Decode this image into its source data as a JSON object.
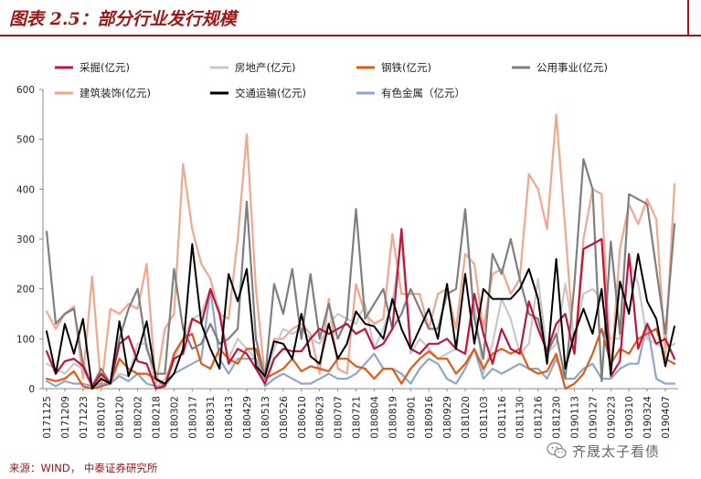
{
  "header": {
    "title": "图表 2.5：部分行业发行规模"
  },
  "footer": {
    "source": "来源：WIND， 中泰证券研究所"
  },
  "watermark": {
    "text": "齐晟太子看债",
    "icon": "wechat-icon"
  },
  "chart_data": {
    "type": "line",
    "title": "",
    "xlabel": "",
    "ylabel": "",
    "ylim": [
      0,
      600
    ],
    "yticks": [
      0,
      100,
      200,
      300,
      400,
      500,
      600
    ],
    "grid": false,
    "legend_position": "top",
    "tick_labels": [
      "20171125",
      "20171209",
      "20171223",
      "20180107",
      "20180120",
      "20180202",
      "20180218",
      "20180302",
      "20180317",
      "20180331",
      "20180413",
      "20180429",
      "20180513",
      "20180526",
      "20180610",
      "20180623",
      "20180707",
      "20180721",
      "20180804",
      "20180819",
      "20180901",
      "20180916",
      "20180929",
      "20181020",
      "20181103",
      "20181116",
      "20181130",
      "20181216",
      "20181230",
      "20190113",
      "20190127",
      "20190223",
      "20190310",
      "20190324",
      "20190407"
    ],
    "x": [
      "20171125",
      "20171202",
      "20171209",
      "20171216",
      "20171223",
      "20171230",
      "20180107",
      "20180113",
      "20180120",
      "20180127",
      "20180202",
      "20180209",
      "20180218",
      "20180224",
      "20180302",
      "20180310",
      "20180317",
      "20180324",
      "20180331",
      "20180407",
      "20180413",
      "20180421",
      "20180429",
      "20180506",
      "20180513",
      "20180519",
      "20180526",
      "20180602",
      "20180610",
      "20180616",
      "20180623",
      "20180630",
      "20180707",
      "20180714",
      "20180721",
      "20180728",
      "20180804",
      "20180811",
      "20180819",
      "20180825",
      "20180901",
      "20180908",
      "20180916",
      "20180922",
      "20180929",
      "20181013",
      "20181020",
      "20181027",
      "20181103",
      "20181110",
      "20181116",
      "20181123",
      "20181130",
      "20181209",
      "20181216",
      "20181222",
      "20181230",
      "20190105",
      "20190113",
      "20190120",
      "20190127",
      "20190210",
      "20190223",
      "20190302",
      "20190310",
      "20190317",
      "20190324",
      "20190331",
      "20190407",
      "20190414"
    ],
    "series": [
      {
        "name": "采掘(亿元)",
        "color": "#c0143c",
        "values": [
          75,
          30,
          55,
          60,
          45,
          5,
          30,
          10,
          90,
          105,
          55,
          50,
          0,
          5,
          60,
          70,
          140,
          130,
          200,
          150,
          50,
          80,
          70,
          40,
          10,
          60,
          80,
          75,
          75,
          100,
          120,
          110,
          120,
          130,
          110,
          120,
          80,
          90,
          120,
          320,
          80,
          70,
          90,
          90,
          100,
          80,
          70,
          190,
          110,
          50,
          120,
          80,
          70,
          175,
          120,
          75,
          130,
          150,
          70,
          280,
          290,
          300,
          25,
          55,
          270,
          80,
          130,
          90,
          100,
          60
        ]
      },
      {
        "name": "房地产(亿元)",
        "color": "#c8c8c8",
        "values": [
          50,
          40,
          30,
          50,
          40,
          5,
          20,
          10,
          30,
          25,
          90,
          90,
          0,
          20,
          60,
          100,
          140,
          150,
          200,
          160,
          60,
          100,
          80,
          60,
          20,
          80,
          120,
          110,
          120,
          100,
          90,
          130,
          150,
          140,
          130,
          170,
          80,
          120,
          170,
          300,
          70,
          100,
          80,
          60,
          70,
          80,
          70,
          170,
          30,
          90,
          180,
          140,
          70,
          90,
          220,
          70,
          90,
          210,
          100,
          190,
          200,
          180,
          100,
          100,
          260,
          210,
          100,
          90,
          80,
          90
        ]
      },
      {
        "name": "钢铁(亿元)",
        "color": "#e05a16",
        "values": [
          20,
          15,
          20,
          35,
          5,
          0,
          5,
          10,
          60,
          40,
          30,
          30,
          20,
          5,
          70,
          100,
          110,
          50,
          40,
          80,
          60,
          50,
          80,
          80,
          20,
          30,
          40,
          60,
          35,
          45,
          40,
          35,
          60,
          60,
          45,
          40,
          20,
          40,
          40,
          10,
          40,
          60,
          75,
          60,
          60,
          30,
          50,
          80,
          40,
          70,
          80,
          70,
          80,
          40,
          30,
          35,
          70,
          0,
          10,
          30,
          70,
          120,
          50,
          80,
          70,
          100,
          110,
          120,
          60,
          50
        ]
      },
      {
        "name": "公用事业(亿元)",
        "color": "#7f7f7f",
        "values": [
          315,
          130,
          150,
          160,
          50,
          5,
          40,
          10,
          100,
          160,
          200,
          80,
          30,
          30,
          240,
          120,
          80,
          90,
          130,
          90,
          100,
          120,
          375,
          100,
          20,
          210,
          150,
          240,
          100,
          230,
          100,
          170,
          100,
          140,
          360,
          140,
          170,
          200,
          120,
          150,
          200,
          160,
          120,
          120,
          190,
          200,
          360,
          140,
          60,
          270,
          230,
          300,
          220,
          150,
          140,
          70,
          110,
          20,
          210,
          460,
          400,
          15,
          295,
          110,
          390,
          380,
          370,
          240,
          110,
          330
        ]
      },
      {
        "name": "建筑装饰(亿元)",
        "color": "#f4a58a",
        "values": [
          155,
          120,
          150,
          165,
          20,
          225,
          0,
          160,
          150,
          170,
          160,
          250,
          5,
          120,
          150,
          450,
          320,
          250,
          220,
          150,
          140,
          300,
          510,
          200,
          20,
          100,
          100,
          120,
          130,
          110,
          30,
          180,
          40,
          30,
          210,
          150,
          130,
          140,
          310,
          190,
          190,
          190,
          120,
          190,
          200,
          120,
          270,
          250,
          120,
          230,
          240,
          190,
          220,
          430,
          400,
          320,
          550,
          320,
          70,
          300,
          400,
          390,
          30,
          280,
          370,
          330,
          380,
          340,
          70,
          410
        ]
      },
      {
        "name": "交通运输(亿元)",
        "color": "#000000",
        "values": [
          115,
          30,
          130,
          70,
          140,
          0,
          20,
          10,
          135,
          25,
          70,
          135,
          20,
          10,
          30,
          80,
          290,
          130,
          80,
          40,
          230,
          175,
          240,
          45,
          25,
          95,
          90,
          60,
          150,
          65,
          50,
          130,
          60,
          90,
          155,
          130,
          125,
          100,
          180,
          120,
          80,
          120,
          160,
          100,
          210,
          80,
          230,
          90,
          200,
          180,
          180,
          180,
          200,
          240,
          180,
          50,
          260,
          40,
          110,
          160,
          110,
          200,
          30,
          215,
          150,
          270,
          175,
          140,
          45,
          125
        ]
      },
      {
        "name": "有色金属（亿元）",
        "color": "#8ea6cc",
        "values": [
          15,
          5,
          15,
          10,
          10,
          5,
          10,
          10,
          25,
          15,
          30,
          10,
          5,
          5,
          30,
          40,
          50,
          60,
          200,
          60,
          30,
          60,
          60,
          60,
          5,
          20,
          30,
          20,
          10,
          10,
          20,
          30,
          20,
          20,
          30,
          50,
          70,
          40,
          40,
          30,
          10,
          40,
          60,
          50,
          20,
          10,
          40,
          80,
          20,
          40,
          30,
          40,
          50,
          40,
          40,
          20,
          60,
          20,
          20,
          40,
          50,
          20,
          20,
          40,
          50,
          50,
          130,
          20,
          10,
          10
        ]
      }
    ]
  }
}
